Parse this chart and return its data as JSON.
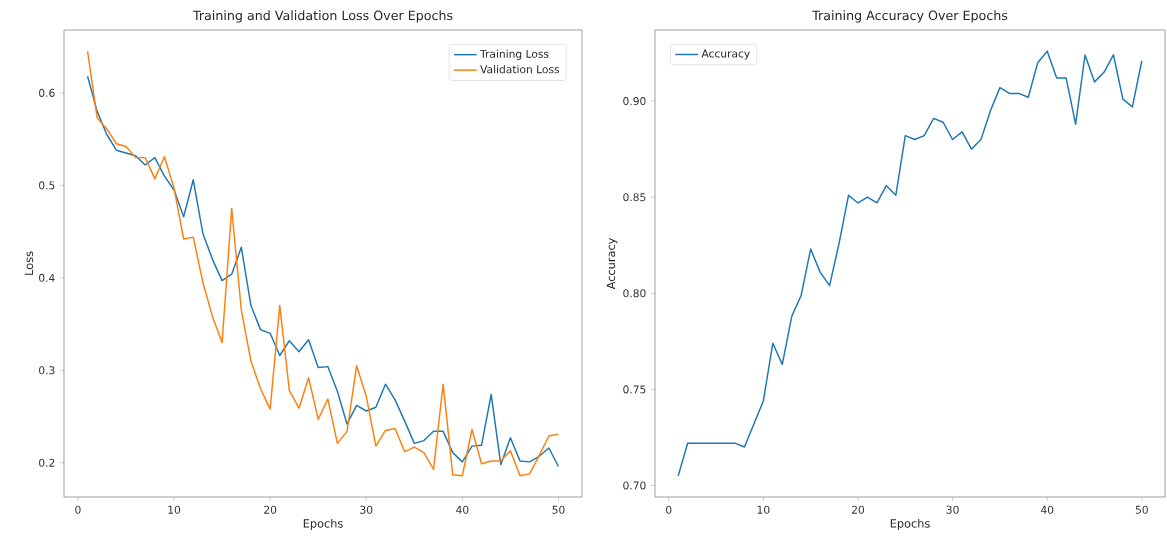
{
  "chart_data": [
    {
      "type": "line",
      "title": "Training and Validation Loss Over Epochs",
      "xlabel": "Epochs",
      "ylabel": "Loss",
      "x": [
        1,
        2,
        3,
        4,
        5,
        6,
        7,
        8,
        9,
        10,
        11,
        12,
        13,
        14,
        15,
        16,
        17,
        18,
        19,
        20,
        21,
        22,
        23,
        24,
        25,
        26,
        27,
        28,
        29,
        30,
        31,
        32,
        33,
        34,
        35,
        36,
        37,
        38,
        39,
        40,
        41,
        42,
        43,
        44,
        45,
        46,
        47,
        48,
        49,
        50
      ],
      "series": [
        {
          "name": "Training Loss",
          "color": "#1f77b4",
          "values": [
            0.618,
            0.58,
            0.555,
            0.538,
            0.535,
            0.532,
            0.522,
            0.53,
            0.51,
            0.495,
            0.466,
            0.506,
            0.448,
            0.42,
            0.397,
            0.404,
            0.433,
            0.37,
            0.344,
            0.34,
            0.316,
            0.332,
            0.32,
            0.333,
            0.303,
            0.304,
            0.277,
            0.242,
            0.262,
            0.256,
            0.26,
            0.285,
            0.268,
            0.245,
            0.221,
            0.224,
            0.234,
            0.234,
            0.211,
            0.201,
            0.218,
            0.219,
            0.274,
            0.198,
            0.227,
            0.202,
            0.201,
            0.207,
            0.216,
            0.196
          ]
        },
        {
          "name": "Validation Loss",
          "color": "#ff7f0e",
          "values": [
            0.645,
            0.573,
            0.561,
            0.545,
            0.542,
            0.53,
            0.53,
            0.507,
            0.531,
            0.497,
            0.442,
            0.444,
            0.395,
            0.358,
            0.33,
            0.475,
            0.365,
            0.31,
            0.28,
            0.258,
            0.37,
            0.278,
            0.259,
            0.292,
            0.247,
            0.269,
            0.221,
            0.234,
            0.305,
            0.272,
            0.218,
            0.235,
            0.237,
            0.212,
            0.217,
            0.211,
            0.193,
            0.285,
            0.187,
            0.186,
            0.236,
            0.199,
            0.202,
            0.202,
            0.213,
            0.186,
            0.188,
            0.208,
            0.229,
            0.231
          ]
        }
      ],
      "xlim": [
        -1.45,
        52.45
      ],
      "ylim": [
        0.163,
        0.668
      ],
      "xticks": [
        0,
        10,
        20,
        30,
        40,
        50
      ],
      "yticks": [
        0.2,
        0.3,
        0.4,
        0.5,
        0.6
      ],
      "legend": "top right"
    },
    {
      "type": "line",
      "title": "Training Accuracy Over Epochs",
      "xlabel": "Epochs",
      "ylabel": "Accuracy",
      "x": [
        1,
        2,
        3,
        4,
        5,
        6,
        7,
        8,
        9,
        10,
        11,
        12,
        13,
        14,
        15,
        16,
        17,
        18,
        19,
        20,
        21,
        22,
        23,
        24,
        25,
        26,
        27,
        28,
        29,
        30,
        31,
        32,
        33,
        34,
        35,
        36,
        37,
        38,
        39,
        40,
        41,
        42,
        43,
        44,
        45,
        46,
        47,
        48,
        49,
        50
      ],
      "series": [
        {
          "name": "Accuracy",
          "color": "#1f77b4",
          "values": [
            0.705,
            0.722,
            0.722,
            0.722,
            0.722,
            0.722,
            0.722,
            0.72,
            0.732,
            0.744,
            0.774,
            0.763,
            0.788,
            0.799,
            0.823,
            0.811,
            0.804,
            0.826,
            0.851,
            0.847,
            0.85,
            0.847,
            0.856,
            0.851,
            0.882,
            0.88,
            0.882,
            0.891,
            0.889,
            0.88,
            0.884,
            0.875,
            0.88,
            0.895,
            0.907,
            0.904,
            0.904,
            0.902,
            0.92,
            0.926,
            0.912,
            0.912,
            0.888,
            0.924,
            0.91,
            0.915,
            0.924,
            0.901,
            0.897,
            0.921
          ]
        }
      ],
      "xlim": [
        -1.45,
        52.45
      ],
      "ylim": [
        0.694,
        0.937
      ],
      "xticks": [
        0,
        10,
        20,
        30,
        40,
        50
      ],
      "yticks": [
        {
          "value": 0.7,
          "label": "0.70"
        },
        0.75,
        {
          "value": 0.8,
          "label": "0.80"
        },
        0.85,
        {
          "value": 0.9,
          "label": "0.90"
        }
      ],
      "legend": "top left"
    }
  ]
}
